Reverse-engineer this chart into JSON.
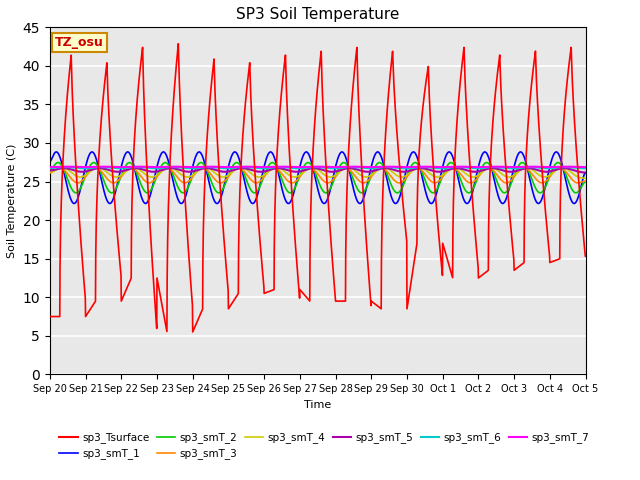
{
  "title": "SP3 Soil Temperature",
  "ylabel": "Soil Temperature (C)",
  "xlabel": "Time",
  "annotation": "TZ_osu",
  "ylim": [
    0,
    45
  ],
  "yticks": [
    0,
    5,
    10,
    15,
    20,
    25,
    30,
    35,
    40,
    45
  ],
  "series": [
    {
      "label": "sp3_Tsurface",
      "color": "#ff0000",
      "lw": 1.2
    },
    {
      "label": "sp3_smT_1",
      "color": "#0000ff",
      "lw": 1.2
    },
    {
      "label": "sp3_smT_2",
      "color": "#00cc00",
      "lw": 1.2
    },
    {
      "label": "sp3_smT_3",
      "color": "#ff8800",
      "lw": 1.2
    },
    {
      "label": "sp3_smT_4",
      "color": "#cccc00",
      "lw": 1.2
    },
    {
      "label": "sp3_smT_5",
      "color": "#aa00aa",
      "lw": 1.5
    },
    {
      "label": "sp3_smT_6",
      "color": "#00cccc",
      "lw": 1.5
    },
    {
      "label": "sp3_smT_7",
      "color": "#ff00ff",
      "lw": 1.5
    }
  ],
  "n_days": 15,
  "pts_per_day": 144,
  "surface_max_vals": [
    41.5,
    40.5,
    42.5,
    43.0,
    41.0,
    40.5,
    41.5,
    42.0,
    42.5,
    42.0,
    40.0,
    42.5,
    41.5,
    42.0,
    42.5
  ],
  "surface_min_vals": [
    7.5,
    9.5,
    12.5,
    5.5,
    8.5,
    10.5,
    11.0,
    9.5,
    9.5,
    8.5,
    17.0,
    12.5,
    13.5,
    14.5,
    15.0
  ],
  "smT_means": [
    25.5,
    25.5,
    25.8,
    26.2,
    26.5,
    26.8,
    26.9
  ],
  "smT_amps": [
    3.5,
    2.2,
    1.2,
    0.9,
    0.4,
    0.15,
    0.08
  ],
  "smT_lags": [
    0.08,
    0.13,
    0.18,
    0.25,
    0.3,
    0.35,
    0.4
  ]
}
